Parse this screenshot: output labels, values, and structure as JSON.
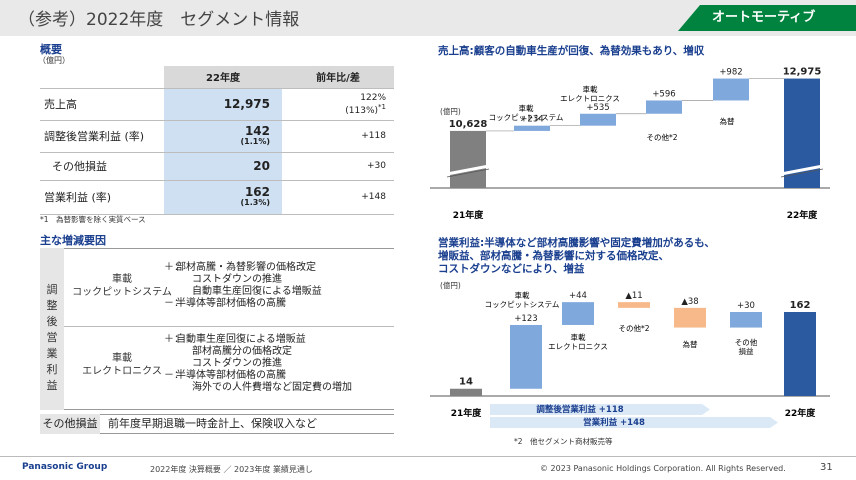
{
  "header": {
    "title": "（参考）2022年度　セグメント情報",
    "segment_tab": "オートモーティブ",
    "colors": {
      "accent_green": "#00833f",
      "navy": "#1a3f8f",
      "bar_light": "#7fa8dc",
      "bar_dark": "#2c5aa0",
      "bar_gray": "#808080",
      "bar_orange": "#f7b98a"
    }
  },
  "overview": {
    "heading": "概要",
    "unit": "（億円）",
    "col_current": "22年度",
    "col_prev": "前年比/差",
    "rows": [
      {
        "label": "売上高",
        "value": "12,975",
        "sub": "",
        "prev": "122%",
        "prev_sub": "(113%)",
        "note": "*1"
      },
      {
        "label": "調整後営業利益 (率)",
        "value": "142",
        "sub": "(1.1%)",
        "prev": "+118",
        "prev_sub": "",
        "note": ""
      },
      {
        "label": "その他損益",
        "value": "20",
        "sub": "",
        "prev": "+30",
        "prev_sub": "",
        "note": ""
      },
      {
        "label": "営業利益 (率)",
        "value": "162",
        "sub": "(1.3%)",
        "prev": "+148",
        "prev_sub": "",
        "note": ""
      }
    ],
    "footnote": "*1　為替影響を除く実質ベース"
  },
  "factors": {
    "heading": "主な増減要因",
    "vertical_label": "調\n整\n後\n営\n業\n利\n益",
    "groups": [
      {
        "name": "車載\nコックピットシステム",
        "items": [
          {
            "mark": "＋：",
            "text": "部材高騰・為替影響の価格改定"
          },
          {
            "mark": "",
            "text": "コストダウンの推進"
          },
          {
            "mark": "",
            "text": "自動車生産回復による増販益"
          },
          {
            "mark": "－：",
            "text": "半導体等部材価格の高騰"
          }
        ]
      },
      {
        "name": "車載\nエレクトロニクス",
        "items": [
          {
            "mark": "＋：",
            "text": "自動車生産回復による増販益"
          },
          {
            "mark": "",
            "text": "部材高騰分の価格改定"
          },
          {
            "mark": "",
            "text": "コストダウンの推進"
          },
          {
            "mark": "－：",
            "text": "半導体等部材価格の高騰"
          },
          {
            "mark": "",
            "text": "海外での人件費増など固定費の増加"
          }
        ]
      }
    ],
    "other_label": "その他損益",
    "other_text": "前年度早期退職一時金計上、保険収入など"
  },
  "chart_data": [
    {
      "type": "bar",
      "subtype": "waterfall",
      "title": "売上高:顧客の自動車生産が回復、為替効果もあり、増収",
      "unit": "(億円)",
      "categories": [
        "21年度",
        "車載\nコックピットシステム",
        "車載\nエレクトロニクス",
        "その他*2",
        "為替",
        "22年度"
      ],
      "values": [
        10628,
        234,
        535,
        596,
        982,
        12975
      ],
      "labels": [
        "10,628",
        "+234",
        "+535",
        "+596",
        "+982",
        "12,975"
      ],
      "axis_break": true,
      "grid": false
    },
    {
      "type": "bar",
      "subtype": "waterfall",
      "title": "営業利益:半導体など部材高騰影響や固定費増加があるも、\n増販益、部材高騰・為替影響に対する価格改定、\nコストダウンなどにより、増益",
      "unit": "(億円)",
      "categories": [
        "21年度",
        "車載\nコックピットシステム",
        "車載\nエレクトロニクス",
        "その他*2",
        "為替",
        "その他\n損益",
        "22年度"
      ],
      "values": [
        14,
        123,
        44,
        -11,
        -38,
        30,
        162
      ],
      "labels": [
        "14",
        "+123",
        "+44",
        "▲11",
        "▲38",
        "+30",
        "162"
      ],
      "annotations": [
        {
          "text": "調整後営業利益  +118"
        },
        {
          "text": "営業利益  +148"
        }
      ],
      "grid": false
    }
  ],
  "chart_footnote": "*2　他セグメント商材販売等",
  "footer": {
    "brand": "Panasonic Group",
    "doc": "2022年度 決算概要 ／ 2023年度 業績見通し",
    "copyright": "© 2023 Panasonic Holdings Corporation. All Rights Reserved.",
    "page": "31"
  }
}
